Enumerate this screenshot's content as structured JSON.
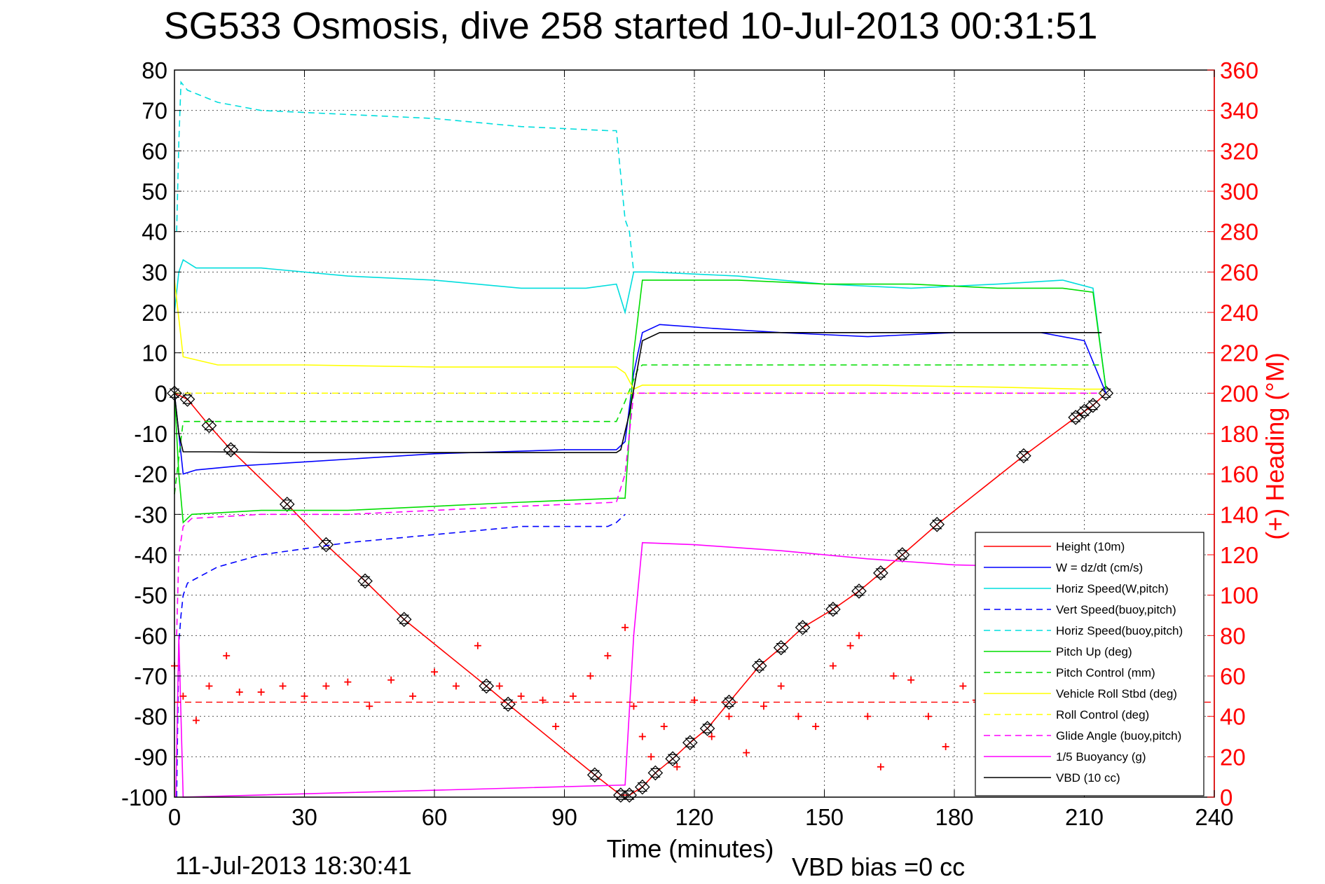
{
  "title": "SG533 Osmosis, dive 258 started 10-Jul-2013 00:31:51",
  "footer_left": "11-Jul-2013 18:30:41",
  "footer_right": "VBD bias =0 cc",
  "chart_data": {
    "type": "line",
    "xlabel": "Time (minutes)",
    "ylabel_right": "(+) Heading (°M)",
    "xlim": [
      0,
      240
    ],
    "ylim_left": [
      -100,
      80
    ],
    "ylim_right": [
      0,
      360
    ],
    "xticks": [
      0,
      30,
      60,
      90,
      120,
      150,
      180,
      210,
      240
    ],
    "yticks_left": [
      80,
      70,
      60,
      50,
      40,
      30,
      20,
      10,
      0,
      -10,
      -20,
      -30,
      -40,
      -50,
      -60,
      -70,
      -80,
      -90,
      -100
    ],
    "yticks_right": [
      360,
      340,
      320,
      300,
      280,
      260,
      240,
      220,
      200,
      180,
      160,
      140,
      120,
      100,
      80,
      60,
      40,
      20,
      0
    ],
    "grid": true,
    "legend_position": "bottom-right",
    "series": [
      {
        "name": "Height (10m)",
        "color": "#ff0000",
        "style": "solid",
        "marker": "hourglass",
        "x": [
          0,
          3,
          8,
          13,
          26,
          35,
          44,
          53,
          72,
          77,
          97,
          103,
          105,
          108,
          111,
          115,
          119,
          123,
          128,
          135,
          140,
          145,
          152,
          158,
          163,
          168,
          176,
          196,
          208,
          210,
          212,
          215
        ],
        "y": [
          0,
          -1.5,
          -8,
          -14,
          -27.5,
          -37.5,
          -46.5,
          -56,
          -72.5,
          -77,
          -94.5,
          -99.5,
          -99.5,
          -97.5,
          -94,
          -90.5,
          -86.5,
          -83,
          -76.5,
          -67.5,
          -63,
          -58,
          -53.5,
          -49,
          -44.5,
          -40,
          -32.5,
          -15.5,
          -6,
          -4.5,
          -3,
          0
        ]
      },
      {
        "name": "W = dz/dt (cm/s)",
        "color": "#0000ff",
        "style": "solid",
        "x": [
          0,
          2,
          5,
          15,
          30,
          45,
          60,
          75,
          90,
          102,
          104,
          106,
          108,
          112,
          125,
          140,
          160,
          180,
          200,
          210,
          215
        ],
        "y": [
          0,
          -20,
          -19,
          -18,
          -17,
          -16,
          -15,
          -14.5,
          -14,
          -14,
          -12,
          5,
          15,
          17,
          16,
          15,
          14,
          15,
          15,
          13,
          0
        ]
      },
      {
        "name": "Horiz Speed(W,pitch)",
        "color": "#00dddd",
        "style": "solid",
        "x": [
          0,
          1,
          2,
          5,
          20,
          40,
          60,
          80,
          95,
          102,
          104,
          106,
          110,
          130,
          150,
          170,
          190,
          205,
          212,
          215
        ],
        "y": [
          20,
          30,
          33,
          31,
          31,
          29,
          28,
          26,
          26,
          27,
          20,
          30,
          30,
          29,
          27,
          26,
          27,
          28,
          26,
          1
        ]
      },
      {
        "name": "Vert Speed(buoy,pitch)",
        "color": "#0000ff",
        "style": "dashed",
        "x": [
          0.5,
          1,
          1.5,
          2,
          3,
          10,
          20,
          40,
          60,
          80,
          100,
          102,
          104
        ],
        "y": [
          -100,
          -62,
          -55,
          -50,
          -47,
          -43,
          -40,
          -37,
          -35,
          -33,
          -33,
          -32,
          -30
        ]
      },
      {
        "name": "Horiz Speed(buoy,pitch)",
        "color": "#00dddd",
        "style": "dashed",
        "x": [
          0.5,
          1,
          1.5,
          3,
          10,
          20,
          40,
          60,
          80,
          100,
          102,
          104,
          105,
          106
        ],
        "y": [
          40,
          62,
          77,
          75,
          72,
          70,
          69,
          68,
          66,
          65,
          65,
          43,
          40,
          30
        ]
      },
      {
        "name": "Pitch Up (deg)",
        "color": "#00dd00",
        "style": "solid",
        "x": [
          0,
          1,
          2,
          4,
          20,
          40,
          60,
          80,
          102,
          104,
          105,
          106,
          108,
          130,
          150,
          170,
          190,
          205,
          212,
          215
        ],
        "y": [
          0,
          -20,
          -32,
          -30,
          -29,
          -29,
          -28,
          -27,
          -26,
          -26,
          -10,
          10,
          28,
          28,
          27,
          27,
          26,
          26,
          25,
          1
        ]
      },
      {
        "name": "Pitch Control (mm)",
        "color": "#00dd00",
        "style": "dashed",
        "x": [
          0,
          2,
          10,
          50,
          102,
          104,
          107,
          108,
          130,
          170,
          214
        ],
        "y": [
          -25,
          -7,
          -7,
          -7,
          -7,
          -2,
          6,
          7,
          7,
          7,
          7
        ]
      },
      {
        "name": "Vehicle Roll Stbd (deg)",
        "color": "#ffff00",
        "style": "solid",
        "x": [
          0,
          2,
          10,
          30,
          60,
          90,
          102,
          104,
          106,
          108,
          130,
          160,
          190,
          210,
          214
        ],
        "y": [
          28,
          9,
          7,
          7,
          6.5,
          6.5,
          6.5,
          5,
          1,
          2,
          2,
          2,
          1.5,
          1,
          1
        ]
      },
      {
        "name": "Roll Control (deg)",
        "color": "#ffff00",
        "style": "dashed",
        "x": [
          0,
          2,
          50,
          102,
          104,
          106,
          150,
          214
        ],
        "y": [
          0,
          0,
          0,
          0,
          0,
          0,
          0,
          0
        ]
      },
      {
        "name": "Glide Angle (buoy,pitch)",
        "color": "#ff00ff",
        "style": "dashed",
        "x": [
          0.5,
          1,
          2,
          4,
          20,
          40,
          60,
          80,
          102,
          104,
          106,
          130,
          170,
          214
        ],
        "y": [
          -60,
          -40,
          -33,
          -31,
          -30,
          -30,
          -29,
          -28,
          -27,
          -20,
          0,
          0,
          0,
          0
        ]
      },
      {
        "name": "1/5 Buoyancy (g)",
        "color": "#ff00ff",
        "style": "solid",
        "x": [
          0.3,
          1,
          2,
          104,
          106,
          108,
          120,
          140,
          160,
          180,
          200,
          214
        ],
        "y": [
          -100,
          -60,
          -100,
          -97,
          -60,
          -37,
          -37.5,
          -39,
          -41,
          -42.5,
          -43,
          -43.5
        ]
      },
      {
        "name": "VBD (10 cc)",
        "color": "#000000",
        "style": "solid",
        "x": [
          0,
          1,
          2,
          8,
          30,
          60,
          102,
          103,
          105,
          108,
          112,
          150,
          200,
          214
        ],
        "y": [
          0,
          -10,
          -14.5,
          -14.5,
          -14.7,
          -14.7,
          -14.7,
          -14,
          -5,
          13,
          15,
          15,
          15,
          15
        ]
      },
      {
        "name": "Heading",
        "color": "#ff0000",
        "style": "markers",
        "axis": "right",
        "x": [
          0,
          2,
          5,
          8,
          12,
          15,
          20,
          25,
          30,
          35,
          40,
          45,
          50,
          55,
          60,
          65,
          70,
          75,
          80,
          85,
          88,
          92,
          96,
          100,
          104,
          106,
          108,
          110,
          113,
          116,
          120,
          124,
          128,
          132,
          136,
          140,
          144,
          148,
          152,
          156,
          158,
          160,
          163,
          166,
          170,
          174,
          178,
          182,
          185
        ],
        "y": [
          65,
          50,
          38,
          55,
          70,
          52,
          52,
          55,
          50,
          55,
          57,
          45,
          58,
          50,
          62,
          55,
          75,
          55,
          50,
          48,
          35,
          50,
          60,
          70,
          84,
          45,
          30,
          20,
          35,
          15,
          48,
          30,
          40,
          22,
          45,
          55,
          40,
          35,
          65,
          75,
          80,
          40,
          15,
          60,
          58,
          40,
          25,
          55,
          48
        ]
      }
    ],
    "heading_mean": 47
  }
}
